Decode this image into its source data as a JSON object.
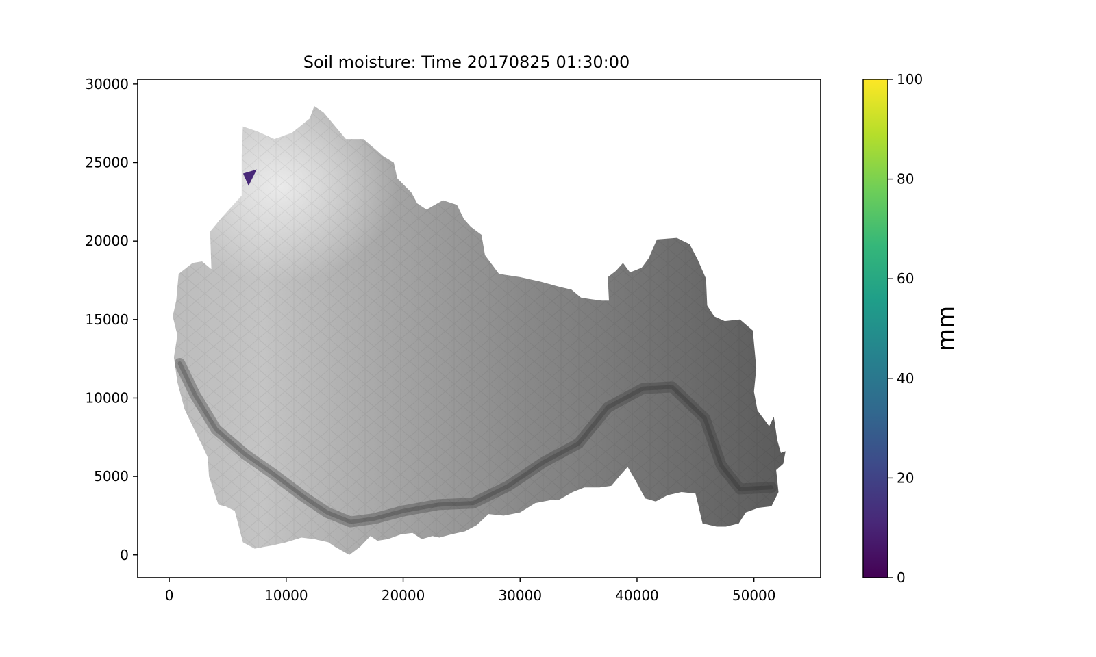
{
  "chart_data": {
    "type": "heatmap",
    "title": "Soil moisture: Time 20170825 01:30:00",
    "xlabel": "",
    "ylabel": "",
    "xlim": [
      -2700,
      55700
    ],
    "ylim": [
      -1450,
      30300
    ],
    "x_ticks": [
      {
        "value": 0,
        "label": "0"
      },
      {
        "value": 10000,
        "label": "10000"
      },
      {
        "value": 20000,
        "label": "20000"
      },
      {
        "value": 30000,
        "label": "30000"
      },
      {
        "value": 40000,
        "label": "40000"
      },
      {
        "value": 50000,
        "label": "50000"
      }
    ],
    "y_ticks": [
      {
        "value": 0,
        "label": "0"
      },
      {
        "value": 5000,
        "label": "5000"
      },
      {
        "value": 10000,
        "label": "10000"
      },
      {
        "value": 15000,
        "label": "15000"
      },
      {
        "value": 20000,
        "label": "20000"
      },
      {
        "value": 25000,
        "label": "25000"
      },
      {
        "value": 30000,
        "label": "30000"
      }
    ],
    "grid": false,
    "colorbar": {
      "label": "mm",
      "colormap": "viridis",
      "range": [
        0,
        100
      ],
      "ticks": [
        {
          "value": 0,
          "label": "0"
        },
        {
          "value": 20,
          "label": "20"
        },
        {
          "value": 40,
          "label": "40"
        },
        {
          "value": 60,
          "label": "60"
        },
        {
          "value": 80,
          "label": "80"
        },
        {
          "value": 100,
          "label": "100"
        }
      ],
      "stops": [
        "#440154",
        "#482878",
        "#3e4989",
        "#31688e",
        "#26828e",
        "#1f9e89",
        "#35b779",
        "#6ece58",
        "#b5de2b",
        "#fde725"
      ]
    },
    "catchment_outline": [
      [
        600,
        16200
      ],
      [
        800,
        17900
      ],
      [
        2000,
        18600
      ],
      [
        2800,
        18700
      ],
      [
        3600,
        18200
      ],
      [
        3500,
        20600
      ],
      [
        4500,
        21500
      ],
      [
        6200,
        22900
      ],
      [
        6200,
        25500
      ],
      [
        6300,
        27300
      ],
      [
        7500,
        27000
      ],
      [
        9000,
        26500
      ],
      [
        10500,
        26900
      ],
      [
        12000,
        27800
      ],
      [
        12400,
        28600
      ],
      [
        13200,
        28200
      ],
      [
        14200,
        27300
      ],
      [
        15100,
        26500
      ],
      [
        16600,
        26500
      ],
      [
        17700,
        25800
      ],
      [
        18300,
        25400
      ],
      [
        19200,
        25000
      ],
      [
        19500,
        24000
      ],
      [
        20700,
        23100
      ],
      [
        21200,
        22400
      ],
      [
        22000,
        22000
      ],
      [
        23400,
        22600
      ],
      [
        24600,
        22300
      ],
      [
        25200,
        21400
      ],
      [
        25800,
        20900
      ],
      [
        26700,
        20400
      ],
      [
        27000,
        19100
      ],
      [
        28200,
        17900
      ],
      [
        30000,
        17700
      ],
      [
        31800,
        17400
      ],
      [
        33300,
        17100
      ],
      [
        34400,
        16900
      ],
      [
        35200,
        16400
      ],
      [
        36000,
        16300
      ],
      [
        37000,
        16200
      ],
      [
        37600,
        16200
      ],
      [
        37500,
        17700
      ],
      [
        38200,
        18100
      ],
      [
        38800,
        18600
      ],
      [
        39400,
        18000
      ],
      [
        40400,
        18300
      ],
      [
        41000,
        18900
      ],
      [
        41700,
        20100
      ],
      [
        43400,
        20200
      ],
      [
        44500,
        19800
      ],
      [
        45200,
        18800
      ],
      [
        45900,
        17600
      ],
      [
        46000,
        15900
      ],
      [
        46600,
        15200
      ],
      [
        47500,
        14900
      ],
      [
        48800,
        15000
      ],
      [
        49900,
        14300
      ],
      [
        50200,
        11900
      ],
      [
        50000,
        10400
      ],
      [
        50300,
        9200
      ],
      [
        51300,
        8200
      ],
      [
        51700,
        8800
      ],
      [
        52000,
        7300
      ],
      [
        52300,
        6500
      ],
      [
        52700,
        6600
      ],
      [
        52500,
        5800
      ],
      [
        51900,
        5400
      ],
      [
        52100,
        4000
      ],
      [
        51500,
        3100
      ],
      [
        50400,
        3000
      ],
      [
        49300,
        2700
      ],
      [
        48700,
        2000
      ],
      [
        47600,
        1800
      ],
      [
        46800,
        1800
      ],
      [
        45600,
        2000
      ],
      [
        45200,
        3300
      ],
      [
        45000,
        3900
      ],
      [
        43800,
        4000
      ],
      [
        42600,
        3800
      ],
      [
        41600,
        3400
      ],
      [
        40700,
        3600
      ],
      [
        39900,
        4700
      ],
      [
        39200,
        5600
      ],
      [
        38600,
        5100
      ],
      [
        37800,
        4400
      ],
      [
        36800,
        4300
      ],
      [
        35500,
        4300
      ],
      [
        34500,
        4000
      ],
      [
        33300,
        3500
      ],
      [
        32700,
        3500
      ],
      [
        31300,
        3300
      ],
      [
        30000,
        2700
      ],
      [
        28600,
        2500
      ],
      [
        27300,
        2600
      ],
      [
        26300,
        1900
      ],
      [
        25300,
        1500
      ],
      [
        24100,
        1300
      ],
      [
        23100,
        1100
      ],
      [
        22500,
        1200
      ],
      [
        21600,
        1000
      ],
      [
        20800,
        1400
      ],
      [
        19800,
        1300
      ],
      [
        18700,
        1000
      ],
      [
        17800,
        900
      ],
      [
        17200,
        1200
      ],
      [
        16300,
        500
      ],
      [
        15400,
        0
      ],
      [
        14200,
        500
      ],
      [
        13600,
        800
      ],
      [
        12400,
        1000
      ],
      [
        11300,
        1100
      ],
      [
        10000,
        800
      ],
      [
        8800,
        600
      ],
      [
        7300,
        400
      ],
      [
        6300,
        800
      ],
      [
        5600,
        2800
      ],
      [
        4800,
        3100
      ],
      [
        4200,
        3200
      ],
      [
        3400,
        5000
      ],
      [
        3300,
        6200
      ],
      [
        2800,
        7000
      ],
      [
        2000,
        8200
      ],
      [
        1300,
        9300
      ],
      [
        700,
        11000
      ],
      [
        400,
        12600
      ],
      [
        700,
        14000
      ],
      [
        300,
        15200
      ]
    ],
    "channel_line": [
      [
        900,
        12200
      ],
      [
        2200,
        10200
      ],
      [
        4000,
        8000
      ],
      [
        6500,
        6400
      ],
      [
        9000,
        5100
      ],
      [
        11500,
        3700
      ],
      [
        13500,
        2700
      ],
      [
        15500,
        2100
      ],
      [
        17500,
        2300
      ],
      [
        20000,
        2800
      ],
      [
        23000,
        3200
      ],
      [
        26000,
        3300
      ],
      [
        29000,
        4400
      ],
      [
        32000,
        5900
      ],
      [
        35000,
        7100
      ],
      [
        37500,
        9400
      ],
      [
        40500,
        10600
      ],
      [
        43000,
        10700
      ],
      [
        45800,
        8700
      ],
      [
        47200,
        5700
      ],
      [
        48800,
        4200
      ],
      [
        51500,
        4300
      ]
    ],
    "moisture_gradient": [
      {
        "x": 0,
        "value_gray": "#bcbcbc"
      },
      {
        "x": 8000,
        "value_gray": "#c4c4c4"
      },
      {
        "x": 18000,
        "value_gray": "#a8a8a8"
      },
      {
        "x": 30000,
        "value_gray": "#8a8a8a"
      },
      {
        "x": 40000,
        "value_gray": "#757575"
      },
      {
        "x": 53000,
        "value_gray": "#5a5a5a"
      }
    ],
    "marker": {
      "x": 6900,
      "y": 24000,
      "value": 15,
      "color": "#482878"
    }
  }
}
